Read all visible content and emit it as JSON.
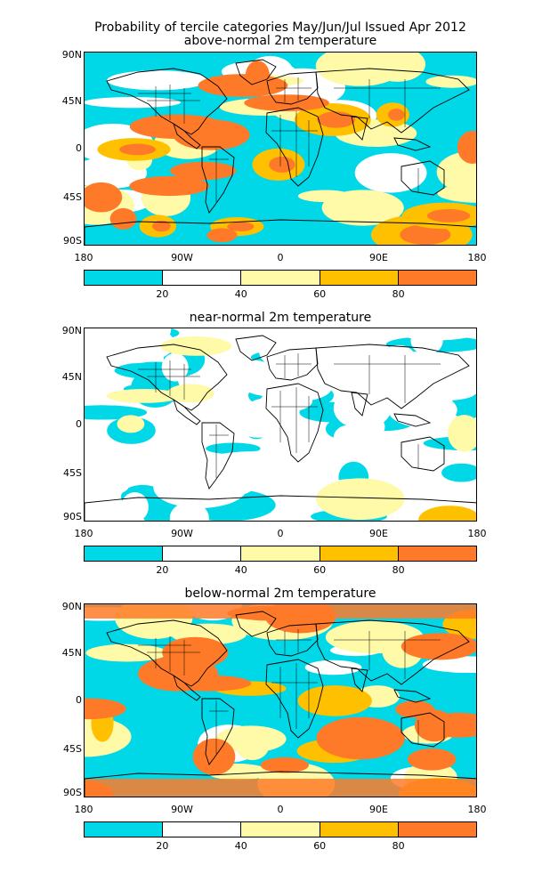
{
  "title_line1": "Probability of tercile categories May/Jun/Jul Issued Apr 2012",
  "colors": {
    "c0": "#00d8e8",
    "c1": "#ffffff",
    "c2": "#fffaa8",
    "c3": "#ffc000",
    "c4": "#ff7a28"
  },
  "axes": {
    "lat_labels": [
      "90N",
      "45N",
      "0",
      "45S",
      "90S"
    ],
    "lon_labels": [
      "180",
      "90W",
      "0",
      "90E",
      "180"
    ]
  },
  "colorbar": {
    "tick_labels": [
      "20",
      "40",
      "60",
      "80"
    ]
  },
  "panels": [
    {
      "title": "above-normal 2m temperature",
      "dominant": "warm"
    },
    {
      "title": "near-normal 2m temperature",
      "dominant": "neutral"
    },
    {
      "title": "below-normal 2m temperature",
      "dominant": "mixed"
    }
  ]
}
